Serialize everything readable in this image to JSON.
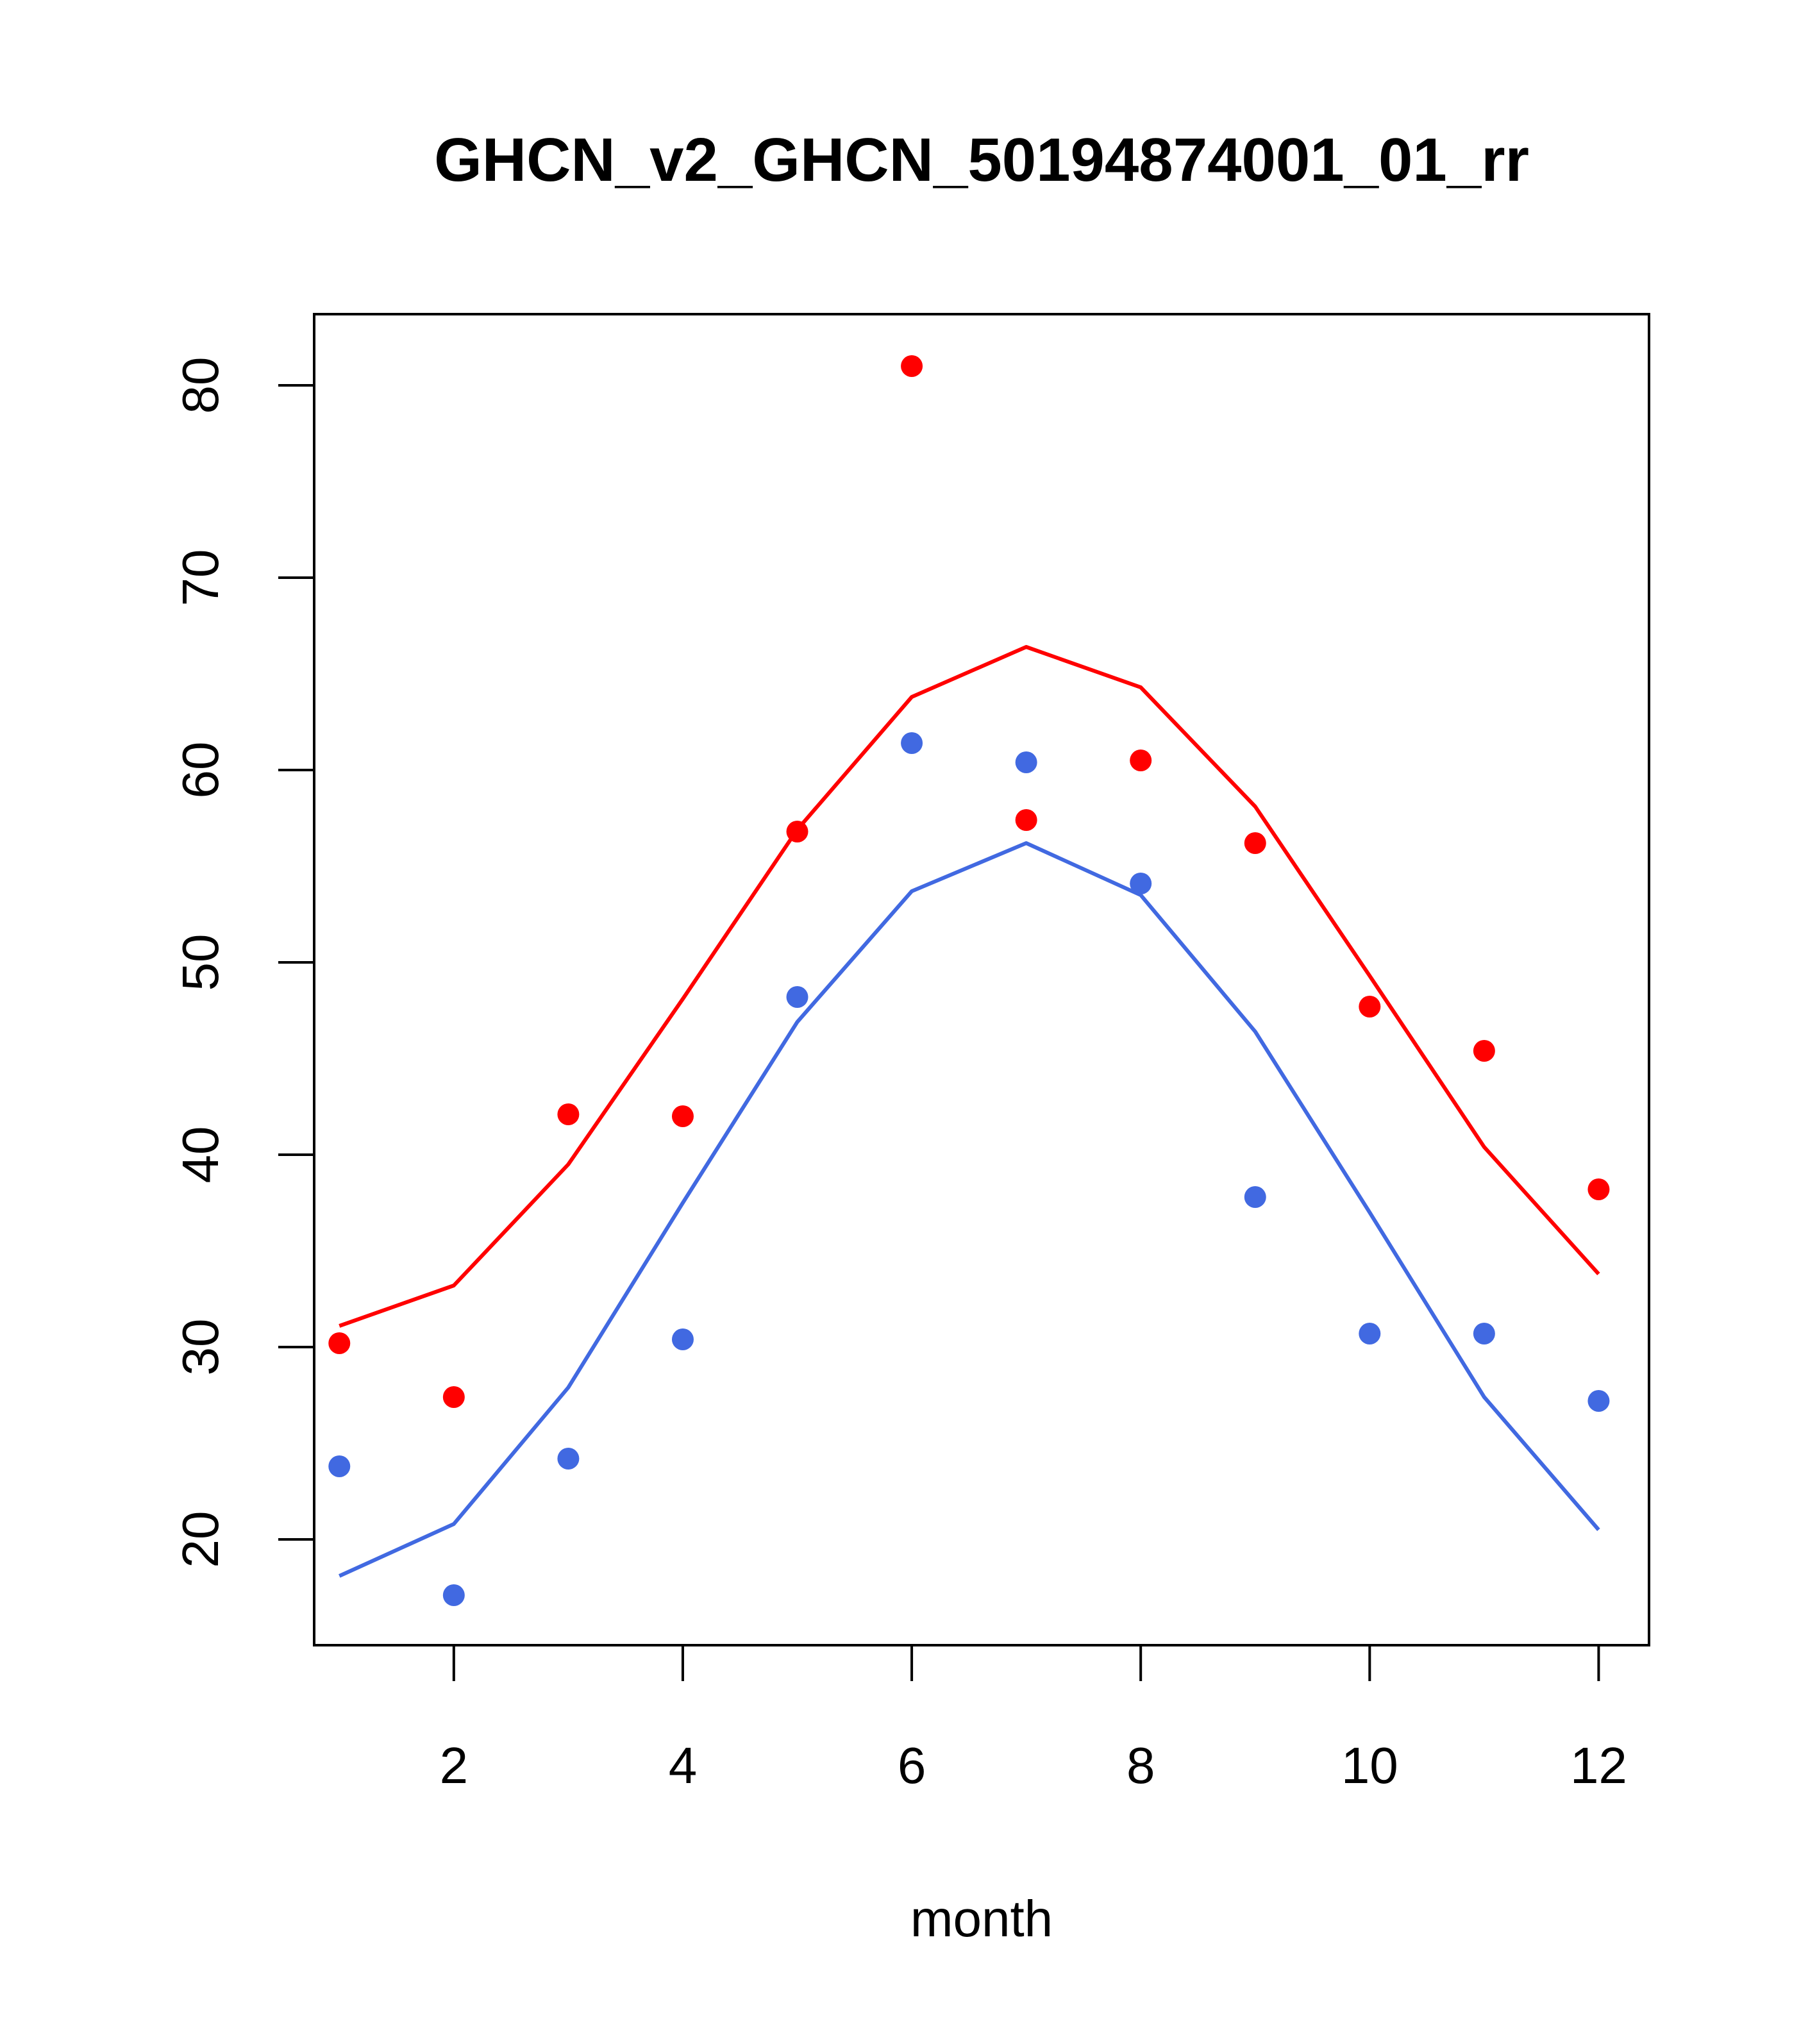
{
  "chart_data": {
    "type": "line",
    "title": "GHCN_v2_GHCN_50194874001_01_rr",
    "xlabel": "month",
    "ylabel": "",
    "xlim": [
      0.78,
      12.44
    ],
    "ylim": [
      14.5,
      83.7
    ],
    "x_ticks": [
      2,
      4,
      6,
      8,
      10,
      12
    ],
    "y_ticks": [
      20,
      30,
      40,
      50,
      60,
      70,
      80
    ],
    "grid": false,
    "x": [
      1,
      2,
      3,
      4,
      5,
      6,
      7,
      8,
      9,
      10,
      11,
      12
    ],
    "series": [
      {
        "mode": "line",
        "color": "#ff0000",
        "values": [
          31.1,
          33.2,
          39.5,
          48.1,
          56.9,
          63.8,
          66.4,
          64.3,
          58.1,
          49.3,
          40.4,
          33.8
        ]
      },
      {
        "mode": "line",
        "color": "#4169e1",
        "values": [
          18.1,
          20.8,
          27.9,
          37.5,
          46.9,
          53.7,
          56.2,
          53.5,
          46.4,
          37.0,
          27.4,
          20.5
        ]
      },
      {
        "mode": "points",
        "color": "#ff0000",
        "values": [
          30.2,
          27.4,
          42.1,
          42.0,
          56.8,
          81.0,
          57.4,
          60.5,
          56.2,
          47.7,
          45.4,
          38.2
        ]
      },
      {
        "mode": "points",
        "color": "#4169e1",
        "values": [
          23.8,
          17.1,
          24.2,
          30.4,
          48.2,
          61.4,
          60.4,
          54.1,
          37.8,
          30.7,
          30.7,
          27.2
        ]
      }
    ]
  }
}
